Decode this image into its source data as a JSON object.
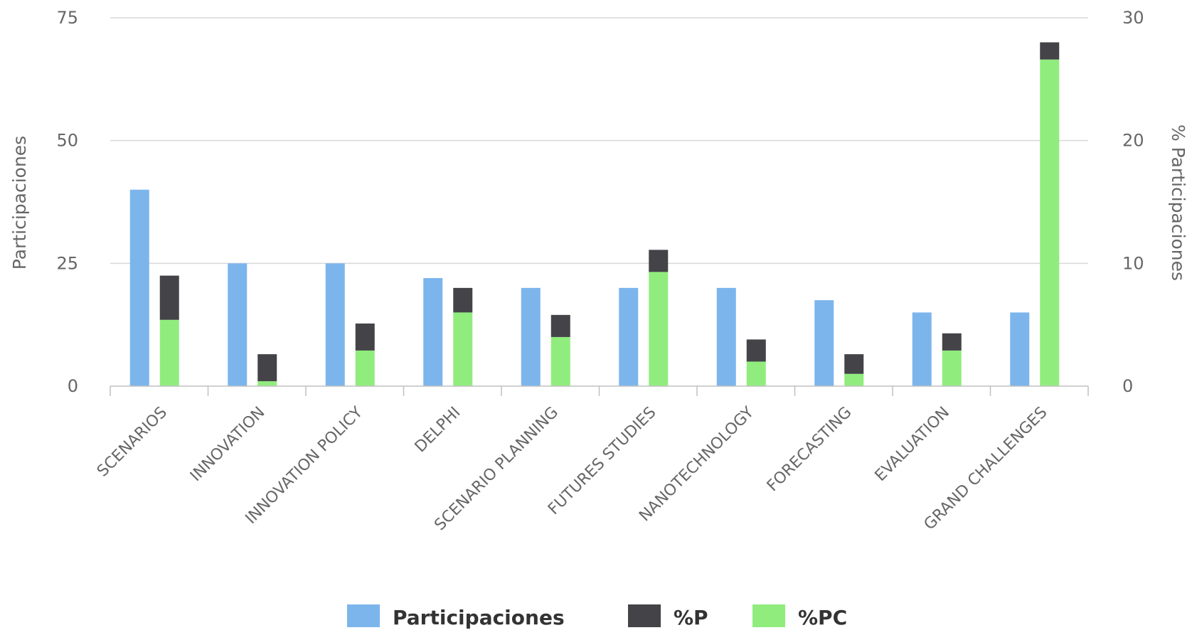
{
  "chart_data": {
    "type": "bar",
    "categories": [
      "SCENARIOS",
      "INNOVATION",
      "INNOVATION POLICY",
      "DELPHI",
      "SCENARIO PLANNING",
      "FUTURES STUDIES",
      "NANOTECHNOLOGY",
      "FORECASTING",
      "EVALUATION",
      "GRAND CHALLENGES"
    ],
    "y_left": {
      "label": "Participaciones",
      "ticks": [
        "0",
        "25",
        "50",
        "75"
      ],
      "lim": [
        0,
        75
      ]
    },
    "y_right": {
      "label": "% Participaciones",
      "ticks": [
        "0",
        "10",
        "20",
        "30"
      ],
      "lim": [
        0,
        30
      ]
    },
    "series": [
      {
        "name": "Participaciones",
        "axis": "left",
        "values": [
          40,
          25,
          25,
          22,
          20,
          20,
          20,
          17.5,
          15,
          15
        ]
      },
      {
        "name": "%P",
        "axis": "right",
        "stack": "pct",
        "values": [
          3.6,
          2.2,
          2.2,
          2.0,
          1.8,
          1.8,
          1.8,
          1.6,
          1.4,
          1.4
        ]
      },
      {
        "name": "%PC",
        "axis": "right",
        "stack": "pct",
        "values": [
          5.4,
          0.4,
          2.9,
          6.0,
          4.0,
          9.3,
          2.0,
          1.0,
          2.9,
          26.6
        ]
      }
    ],
    "colors": {
      "Participaciones": "#7cb5ec",
      "%P": "#434348",
      "%PC": "#90ed7d"
    },
    "legend_position": "bottom-center",
    "grid": true
  }
}
